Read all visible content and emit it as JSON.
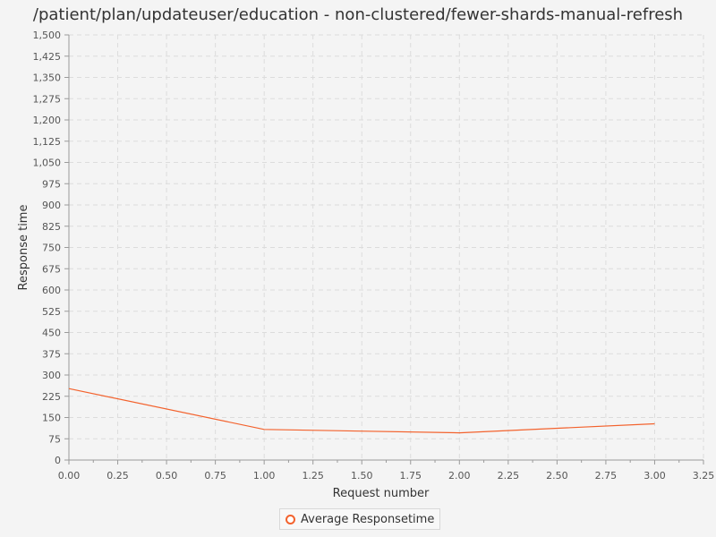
{
  "chart_data": {
    "type": "line",
    "title": "/patient/plan/updateuser/education - non-clustered/fewer-shards-manual-refresh",
    "xlabel": "Request number",
    "ylabel": "Response time",
    "xlim": [
      0,
      3.25
    ],
    "ylim": [
      0,
      1500
    ],
    "x_ticks": [
      "0.00",
      "0.25",
      "0.50",
      "0.75",
      "1.00",
      "1.25",
      "1.50",
      "1.75",
      "2.00",
      "2.25",
      "2.50",
      "2.75",
      "3.00",
      "3.25"
    ],
    "y_ticks": [
      "0",
      "75",
      "150",
      "225",
      "300",
      "375",
      "450",
      "525",
      "600",
      "675",
      "750",
      "825",
      "900",
      "975",
      "1,050",
      "1,125",
      "1,200",
      "1,275",
      "1,350",
      "1,425",
      "1,500"
    ],
    "grid": true,
    "legend_position": "bottom-center",
    "series": [
      {
        "name": "Average Responsetime",
        "color": "#f3622d",
        "x": [
          0,
          1,
          2,
          3
        ],
        "y": [
          252,
          108,
          96,
          128
        ]
      }
    ]
  }
}
